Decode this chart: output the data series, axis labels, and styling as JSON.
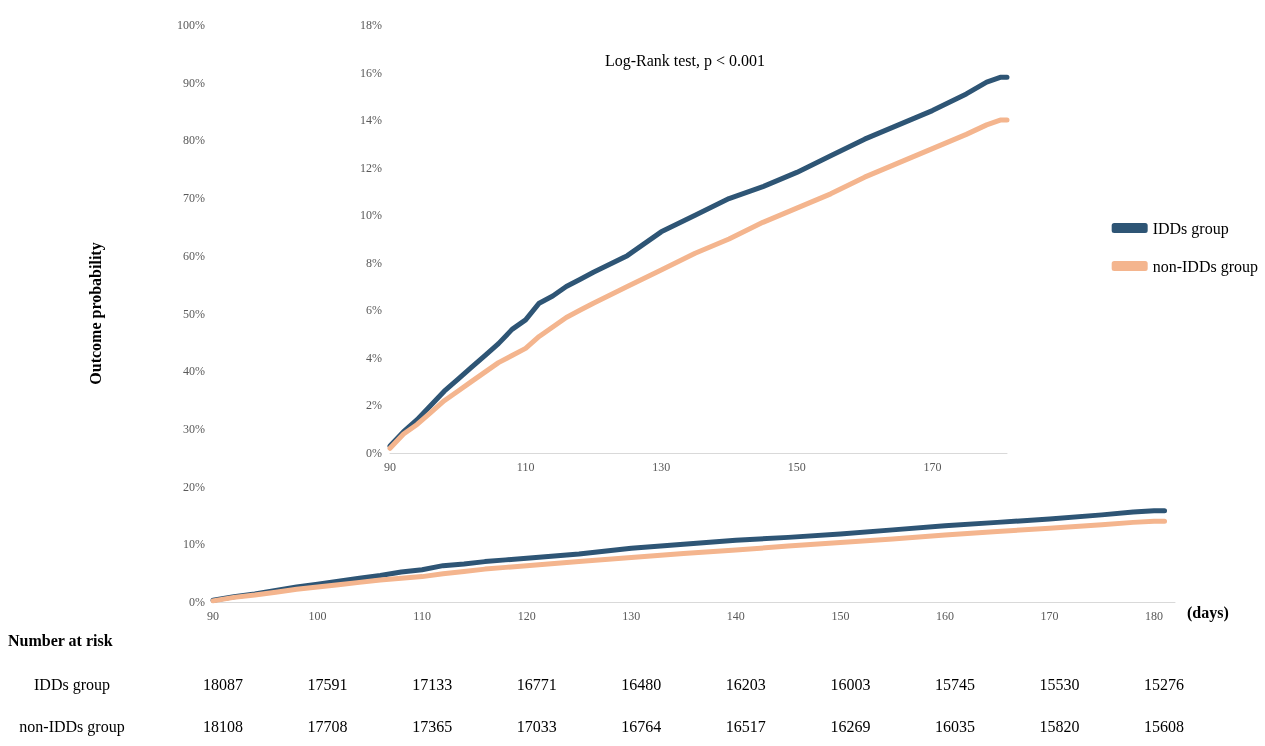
{
  "chart_data": [
    {
      "type": "line",
      "xlabel": "(days)",
      "ylabel": "Outcome probability",
      "legend": "right",
      "grid": false,
      "marker": "none",
      "line_style": "solid",
      "x": [
        90,
        92,
        94,
        96,
        98,
        100,
        102,
        104,
        106,
        108,
        110,
        112,
        114,
        116,
        118,
        120,
        125,
        130,
        135,
        140,
        145,
        150,
        155,
        160,
        165,
        170,
        175,
        178,
        180,
        181
      ],
      "series": [
        {
          "name": "IDDs group",
          "color": "#2e5575",
          "values": [
            0.3,
            0.9,
            1.4,
            2.0,
            2.6,
            3.1,
            3.6,
            4.1,
            4.6,
            5.2,
            5.6,
            6.3,
            6.6,
            7.0,
            7.3,
            7.6,
            8.3,
            9.3,
            10.0,
            10.7,
            11.2,
            11.8,
            12.5,
            13.2,
            13.8,
            14.4,
            15.1,
            15.6,
            15.8,
            15.8
          ]
        },
        {
          "name": "non-IDDs group",
          "color": "#f4b58e",
          "values": [
            0.2,
            0.8,
            1.2,
            1.7,
            2.2,
            2.6,
            3.0,
            3.4,
            3.8,
            4.1,
            4.4,
            4.9,
            5.3,
            5.7,
            6.0,
            6.3,
            7.0,
            7.7,
            8.4,
            9.0,
            9.7,
            10.3,
            10.9,
            11.6,
            12.2,
            12.8,
            13.4,
            13.8,
            14.0,
            14.0
          ]
        }
      ],
      "xlim": [
        90,
        182
      ],
      "xticks": [
        90,
        100,
        110,
        120,
        130,
        140,
        150,
        160,
        170,
        180
      ],
      "ylim": [
        0,
        100
      ],
      "yticks": [
        {
          "value": 0,
          "label": "0%"
        },
        {
          "value": 10,
          "label": "10%"
        },
        {
          "value": 20,
          "label": "20%"
        },
        {
          "value": 30,
          "label": "30%"
        },
        {
          "value": 40,
          "label": "40%"
        },
        {
          "value": 50,
          "label": "50%"
        },
        {
          "value": 60,
          "label": "60%"
        },
        {
          "value": 70,
          "label": "70%"
        },
        {
          "value": 80,
          "label": "80%"
        },
        {
          "value": 90,
          "label": "90%"
        },
        {
          "value": 100,
          "label": "100%"
        }
      ],
      "annotations": [
        "Number at risk",
        "IDDs group",
        "18087",
        "17591",
        "17133",
        "16771",
        "16480",
        "16203",
        "16003",
        "15745",
        "15530",
        "15276",
        "non-IDDs group",
        "18108",
        "17708",
        "17365",
        "17033",
        "16764",
        "16517",
        "16269",
        "16035",
        "15820",
        "15608"
      ]
    },
    {
      "type": "line",
      "legend": false,
      "grid": false,
      "marker": "none",
      "line_style": "solid",
      "x": [
        90,
        92,
        94,
        96,
        98,
        100,
        102,
        104,
        106,
        108,
        110,
        112,
        114,
        116,
        118,
        120,
        125,
        130,
        135,
        140,
        145,
        150,
        155,
        160,
        165,
        170,
        175,
        178,
        180,
        181
      ],
      "series": [
        {
          "color": "#2e5575",
          "values": [
            0.3,
            0.9,
            1.4,
            2.0,
            2.6,
            3.1,
            3.6,
            4.1,
            4.6,
            5.2,
            5.6,
            6.3,
            6.6,
            7.0,
            7.3,
            7.6,
            8.3,
            9.3,
            10.0,
            10.7,
            11.2,
            11.8,
            12.5,
            13.2,
            13.8,
            14.4,
            15.1,
            15.6,
            15.8,
            15.8
          ]
        },
        {
          "color": "#f4b58e",
          "values": [
            0.2,
            0.8,
            1.2,
            1.7,
            2.2,
            2.6,
            3.0,
            3.4,
            3.8,
            4.1,
            4.4,
            4.9,
            5.3,
            5.7,
            6.0,
            6.3,
            7.0,
            7.7,
            8.4,
            9.0,
            9.7,
            10.3,
            10.9,
            11.6,
            12.2,
            12.8,
            13.4,
            13.8,
            14.0,
            14.0
          ]
        }
      ],
      "xlim": [
        90,
        181
      ],
      "xticks": [
        90,
        110,
        130,
        150,
        170
      ],
      "ylim": [
        0,
        18
      ],
      "yticks": [
        {
          "value": 0,
          "label": "0%"
        },
        {
          "value": 2,
          "label": "2%"
        },
        {
          "value": 4,
          "label": "4%"
        },
        {
          "value": 6,
          "label": "6%"
        },
        {
          "value": 8,
          "label": "8%"
        },
        {
          "value": 10,
          "label": "10%"
        },
        {
          "value": 12,
          "label": "12%"
        },
        {
          "value": 14,
          "label": "14%"
        },
        {
          "value": 16,
          "label": "16%"
        },
        {
          "value": 18,
          "label": "18%"
        }
      ],
      "annotations": [
        "Log-Rank test, p < 0.001"
      ]
    }
  ]
}
